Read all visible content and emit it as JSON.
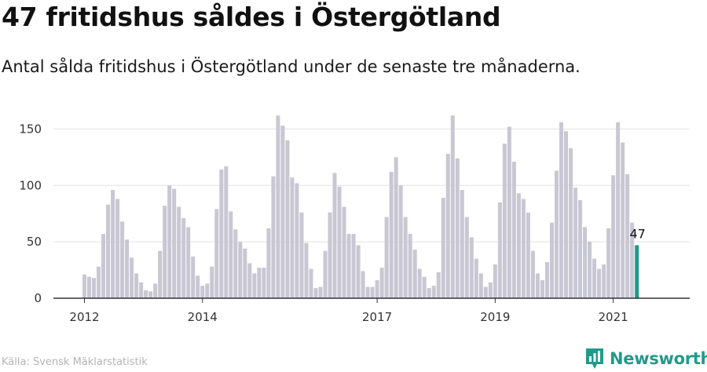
{
  "title": "47 fritidshus såldes i Östergötland",
  "subtitle": "Antal sålda fritidshus i Östergötland under de senaste tre månaderna.",
  "source": "Källa: Svensk Mäklarstatistik",
  "brand": {
    "name": "Newsworthy",
    "icon": "newsworthy-logo-icon"
  },
  "colors": {
    "bar": "#c8c7d3",
    "highlight": "#1a9b8c",
    "axis": "#333333",
    "grid": "#e2e2e2",
    "brand": "#229a8a"
  },
  "chart_data": {
    "type": "bar",
    "title": "47 fritidshus såldes i Östergötland",
    "xlabel": "",
    "ylabel": "",
    "ylim": [
      0,
      160
    ],
    "yticks": [
      0,
      50,
      100,
      150
    ],
    "xticks": [
      {
        "label": "2012",
        "index": 0
      },
      {
        "label": "2014",
        "index": 25
      },
      {
        "label": "2017",
        "index": 62
      },
      {
        "label": "2019",
        "index": 87
      },
      {
        "label": "2021",
        "index": 112
      }
    ],
    "grid": true,
    "highlight_label": "47",
    "values": [
      21,
      19,
      18,
      28,
      57,
      83,
      96,
      88,
      68,
      52,
      36,
      22,
      14,
      7,
      6,
      13,
      42,
      82,
      100,
      97,
      81,
      71,
      63,
      37,
      20,
      11,
      13,
      28,
      79,
      114,
      117,
      77,
      61,
      50,
      44,
      31,
      22,
      27,
      27,
      62,
      108,
      162,
      153,
      140,
      107,
      102,
      76,
      49,
      26,
      9,
      10,
      42,
      76,
      111,
      99,
      81,
      57,
      57,
      47,
      24,
      10,
      10,
      16,
      27,
      72,
      112,
      125,
      100,
      72,
      57,
      43,
      26,
      19,
      9,
      11,
      23,
      89,
      128,
      162,
      124,
      96,
      72,
      54,
      35,
      22,
      10,
      14,
      30,
      85,
      137,
      152,
      121,
      93,
      88,
      76,
      42,
      22,
      16,
      32,
      67,
      113,
      156,
      148,
      133,
      98,
      87,
      63,
      50,
      35,
      26,
      30,
      62,
      109,
      156,
      138,
      110,
      67,
      47
    ]
  }
}
